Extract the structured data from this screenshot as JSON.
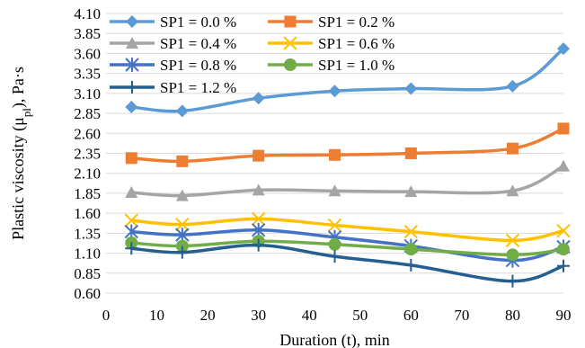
{
  "chart_data": {
    "type": "line",
    "xlabel": "Duration (t), min",
    "ylabel_parts": {
      "pre": "Plastic viscosity (μ",
      "sub": "pl",
      "post": "), Pa·s"
    },
    "xlim": [
      0,
      90
    ],
    "ylim": [
      0.6,
      4.1
    ],
    "x_ticks": [
      0,
      10,
      20,
      30,
      40,
      50,
      60,
      70,
      80,
      90
    ],
    "y_ticks": [
      0.6,
      0.85,
      1.1,
      1.35,
      1.6,
      1.85,
      2.1,
      2.35,
      2.6,
      2.85,
      3.1,
      3.35,
      3.6,
      3.85,
      4.1
    ],
    "x_tick_labels": [
      "0",
      "10",
      "20",
      "30",
      "40",
      "50",
      "60",
      "70",
      "80",
      "90"
    ],
    "y_tick_labels": [
      "0.60",
      "0.85",
      "1.10",
      "1.35",
      "1.60",
      "1.85",
      "2.10",
      "2.35",
      "2.60",
      "2.85",
      "3.10",
      "3.35",
      "3.60",
      "3.85",
      "4.10"
    ],
    "grid": "horizontal",
    "legend_position": "top-left",
    "x": [
      5,
      15,
      30,
      45,
      60,
      80,
      90
    ],
    "series": [
      {
        "name": "SP1 = 0.0 %",
        "color": "#5b9bd5",
        "marker": "diamond",
        "values": [
          2.93,
          2.88,
          3.04,
          3.13,
          3.16,
          3.19,
          3.66
        ]
      },
      {
        "name": "SP1 = 0.2 %",
        "color": "#ed7d31",
        "marker": "square",
        "values": [
          2.29,
          2.25,
          2.32,
          2.33,
          2.35,
          2.41,
          2.66
        ]
      },
      {
        "name": "SP1 = 0.4 %",
        "color": "#a5a5a5",
        "marker": "triangle",
        "values": [
          1.86,
          1.82,
          1.89,
          1.88,
          1.87,
          1.88,
          2.19
        ]
      },
      {
        "name": "SP1 = 0.6 %",
        "color": "#ffc000",
        "marker": "x",
        "values": [
          1.51,
          1.46,
          1.53,
          1.45,
          1.37,
          1.26,
          1.38
        ]
      },
      {
        "name": "SP1 = 0.8 %",
        "color": "#4472c4",
        "marker": "star",
        "values": [
          1.37,
          1.33,
          1.39,
          1.3,
          1.19,
          1.01,
          1.18
        ]
      },
      {
        "name": "SP1 = 1.0 %",
        "color": "#70ad47",
        "marker": "circle",
        "values": [
          1.23,
          1.19,
          1.25,
          1.21,
          1.15,
          1.08,
          1.15
        ]
      },
      {
        "name": "SP1 = 1.2 %",
        "color": "#255e91",
        "marker": "plus",
        "values": [
          1.16,
          1.11,
          1.2,
          1.06,
          0.95,
          0.75,
          0.94
        ]
      }
    ]
  }
}
